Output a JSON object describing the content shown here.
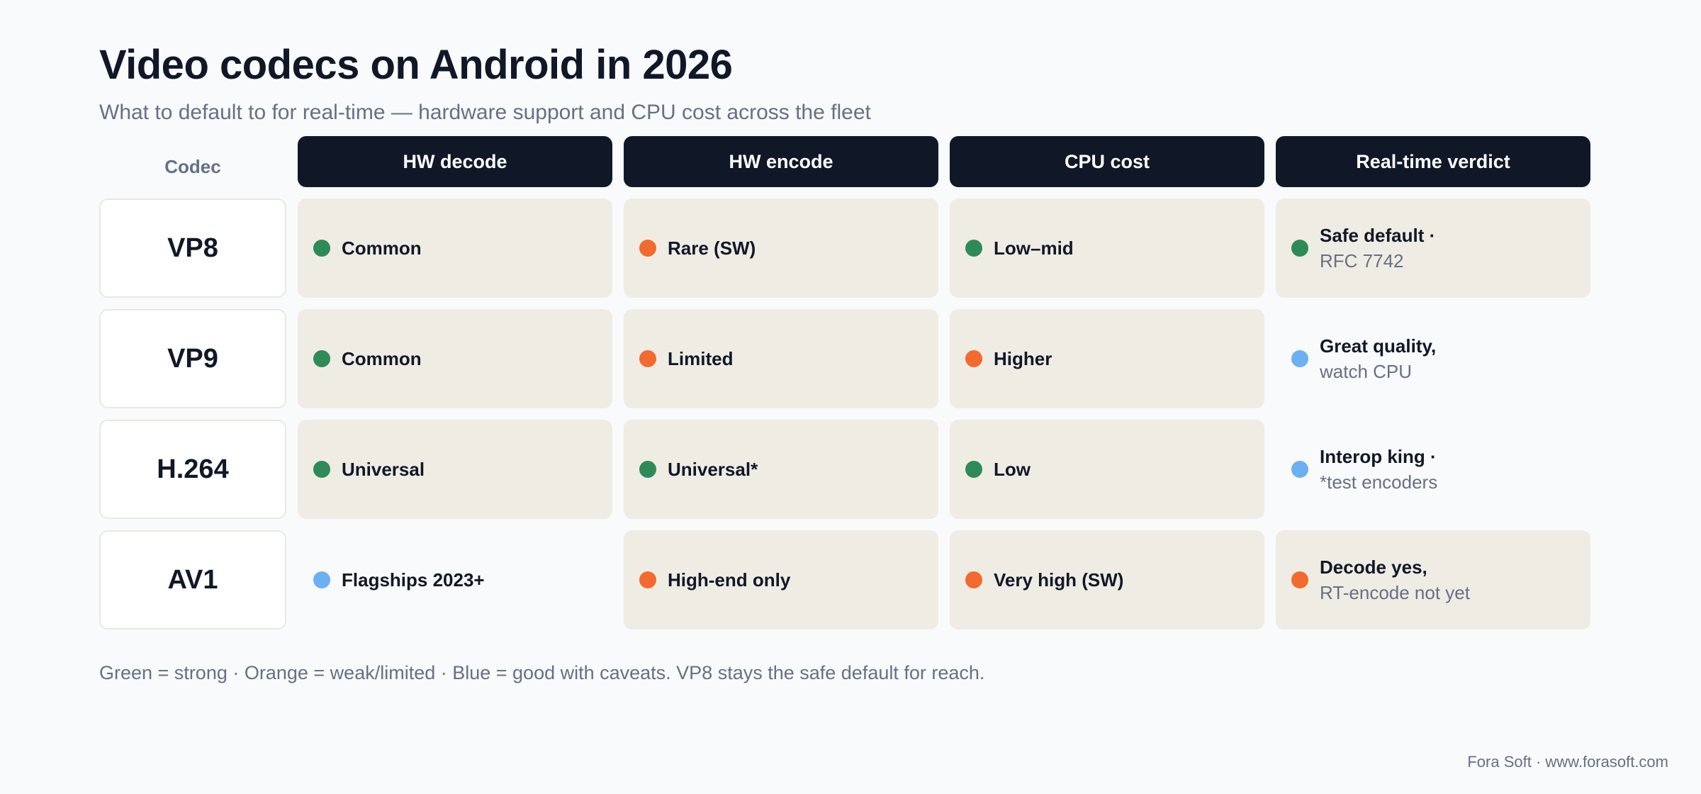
{
  "title": "Video codecs on Android in 2026",
  "subtitle": "What to default to for real-time — hardware support and CPU cost across the fleet",
  "colors": {
    "green": "#2e8b57",
    "orange": "#f26a2e",
    "blue": "#6ab0f3",
    "header_bg": "#101828",
    "cell_bg": "#efece4"
  },
  "table": {
    "codec_header": "Codec",
    "headers": [
      "HW decode",
      "HW encode",
      "CPU cost",
      "Real-time verdict"
    ],
    "rows": [
      {
        "codec": "VP8",
        "cells": [
          {
            "status": "green",
            "text": "Common",
            "filled": true
          },
          {
            "status": "orange",
            "text": "Rare (SW)",
            "filled": true
          },
          {
            "status": "green",
            "text": "Low–mid",
            "filled": true
          },
          {
            "status": "green",
            "line1": "Safe default ·",
            "line2": "RFC 7742",
            "filled": true
          }
        ]
      },
      {
        "codec": "VP9",
        "cells": [
          {
            "status": "green",
            "text": "Common",
            "filled": true
          },
          {
            "status": "orange",
            "text": "Limited",
            "filled": true
          },
          {
            "status": "orange",
            "text": "Higher",
            "filled": true
          },
          {
            "status": "blue",
            "line1": "Great quality,",
            "line2": "watch CPU",
            "filled": false
          }
        ]
      },
      {
        "codec": "H.264",
        "cells": [
          {
            "status": "green",
            "text": "Universal",
            "filled": true
          },
          {
            "status": "green",
            "text": "Universal*",
            "filled": true
          },
          {
            "status": "green",
            "text": "Low",
            "filled": true
          },
          {
            "status": "blue",
            "line1": "Interop king ·",
            "line2": "*test encoders",
            "filled": false
          }
        ]
      },
      {
        "codec": "AV1",
        "cells": [
          {
            "status": "blue",
            "text": "Flagships 2023+",
            "filled": false
          },
          {
            "status": "orange",
            "text": "High-end only",
            "filled": true
          },
          {
            "status": "orange",
            "text": "Very high (SW)",
            "filled": true
          },
          {
            "status": "orange",
            "line1": "Decode yes,",
            "line2": "RT-encode not yet",
            "filled": true
          }
        ]
      }
    ]
  },
  "note": "Green = strong · Orange = weak/limited · Blue = good with caveats. VP8 stays the safe default for reach.",
  "footer": "Fora Soft · www.forasoft.com"
}
